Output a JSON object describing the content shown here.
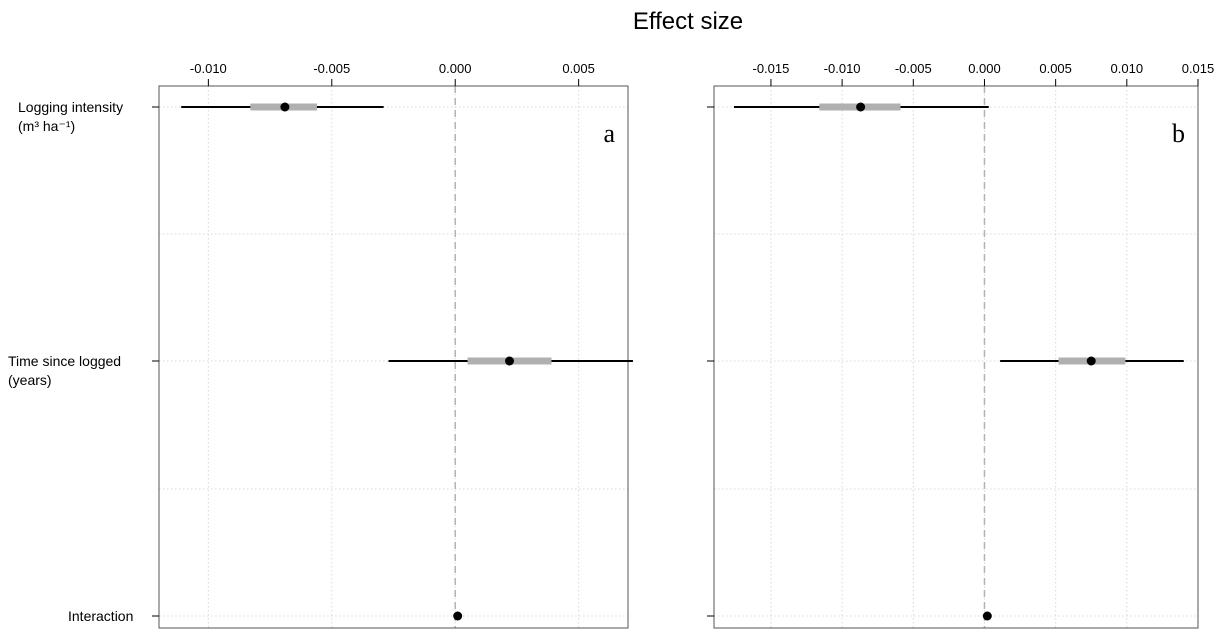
{
  "chart_data": {
    "type": "coefficient-plot",
    "title": "Effect size",
    "grid": true,
    "reference_line": 0,
    "categories": [
      {
        "lines": [
          "Logging intensity",
          "(m³ ha⁻¹)"
        ]
      },
      {
        "lines": [
          "Time since logged",
          "(years)"
        ]
      },
      {
        "lines": [
          "Interaction"
        ]
      }
    ],
    "panels": [
      {
        "label": "a",
        "xlim": [
          -0.012,
          0.007
        ],
        "xticks": [
          -0.01,
          -0.005,
          0.0,
          0.005
        ],
        "xtick_labels": [
          "-0.010",
          "-0.005",
          "0.000",
          "0.005"
        ],
        "estimates": [
          {
            "category": "Logging intensity (m³ ha⁻¹)",
            "estimate": -0.0069,
            "inner": [
              -0.0083,
              -0.0056
            ],
            "outer": [
              -0.0111,
              -0.0029
            ]
          },
          {
            "category": "Time since logged (years)",
            "estimate": 0.0022,
            "inner": [
              0.0005,
              0.0039
            ],
            "outer": [
              -0.0027,
              0.0072
            ]
          },
          {
            "category": "Interaction",
            "estimate": 0.0001,
            "inner": [
              0.0001,
              0.0001
            ],
            "outer": [
              0.0001,
              0.0001
            ]
          }
        ]
      },
      {
        "label": "b",
        "xlim": [
          -0.019,
          0.015
        ],
        "xticks": [
          -0.015,
          -0.01,
          -0.005,
          0.0,
          0.005,
          0.01,
          0.015
        ],
        "xtick_labels": [
          "-0.015",
          "-0.010",
          "-0.005",
          "0.000",
          "0.005",
          "0.010",
          "0.015"
        ],
        "estimates": [
          {
            "category": "Logging intensity (m³ ha⁻¹)",
            "estimate": -0.0087,
            "inner": [
              -0.0116,
              -0.0059
            ],
            "outer": [
              -0.0176,
              0.0003
            ]
          },
          {
            "category": "Time since logged (years)",
            "estimate": 0.0075,
            "inner": [
              0.0052,
              0.0099
            ],
            "outer": [
              0.0011,
              0.014
            ]
          },
          {
            "category": "Interaction",
            "estimate": 0.0002,
            "inner": [
              0.0002,
              0.0002
            ],
            "outer": [
              0.0002,
              0.0002
            ]
          }
        ]
      }
    ]
  },
  "colors": {
    "grid": "#d9d9d9",
    "zero_line": "#b3b3b3",
    "inner_interval": "#b0b0b0",
    "outer_interval": "#000000",
    "point": "#000000",
    "frame": "#555555"
  }
}
